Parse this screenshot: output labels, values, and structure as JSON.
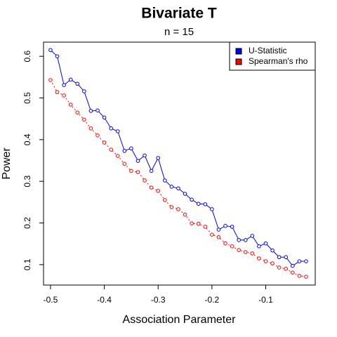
{
  "chart_data": {
    "type": "line",
    "title": "Bivariate T",
    "subtitle": "n = 15",
    "xlabel": "Association Parameter",
    "ylabel": "Power",
    "x": [
      -0.5,
      -0.4875,
      -0.475,
      -0.4625,
      -0.45,
      -0.4375,
      -0.425,
      -0.4125,
      -0.4,
      -0.3875,
      -0.375,
      -0.3625,
      -0.35,
      -0.3375,
      -0.325,
      -0.3125,
      -0.3,
      -0.2875,
      -0.275,
      -0.2625,
      -0.25,
      -0.2375,
      -0.225,
      -0.2125,
      -0.2,
      -0.1875,
      -0.175,
      -0.1625,
      -0.15,
      -0.1375,
      -0.125,
      -0.1125,
      -0.1,
      -0.0875,
      -0.075,
      -0.0625,
      -0.05,
      -0.0375,
      -0.025
    ],
    "series": [
      {
        "name": "U-Statistic",
        "color": "#0000ff",
        "line_style": "solid",
        "values": [
          0.615,
          0.6,
          0.531,
          0.544,
          0.534,
          0.516,
          0.469,
          0.47,
          0.453,
          0.427,
          0.42,
          0.373,
          0.379,
          0.349,
          0.362,
          0.325,
          0.356,
          0.302,
          0.287,
          0.283,
          0.27,
          0.256,
          0.246,
          0.245,
          0.233,
          0.184,
          0.193,
          0.191,
          0.159,
          0.159,
          0.169,
          0.144,
          0.151,
          0.134,
          0.118,
          0.118,
          0.097,
          0.108,
          0.108
        ]
      },
      {
        "name": "Spearman's rho",
        "color": "#ff0000",
        "line_style": "dashed",
        "values": [
          0.543,
          0.514,
          0.506,
          0.484,
          0.465,
          0.448,
          0.427,
          0.41,
          0.393,
          0.376,
          0.361,
          0.342,
          0.325,
          0.322,
          0.302,
          0.285,
          0.277,
          0.255,
          0.238,
          0.233,
          0.22,
          0.199,
          0.198,
          0.191,
          0.172,
          0.166,
          0.151,
          0.144,
          0.135,
          0.13,
          0.127,
          0.115,
          0.108,
          0.103,
          0.093,
          0.09,
          0.081,
          0.073,
          0.071
        ]
      }
    ],
    "xlim": [
      -0.513,
      -0.008
    ],
    "xticks": [
      -0.5,
      -0.4,
      -0.3,
      -0.2,
      -0.1
    ],
    "ylim": [
      0.051,
      0.634
    ],
    "yticks": [
      0.1,
      0.2,
      0.3,
      0.4,
      0.5,
      0.6
    ],
    "legend": "topright"
  }
}
